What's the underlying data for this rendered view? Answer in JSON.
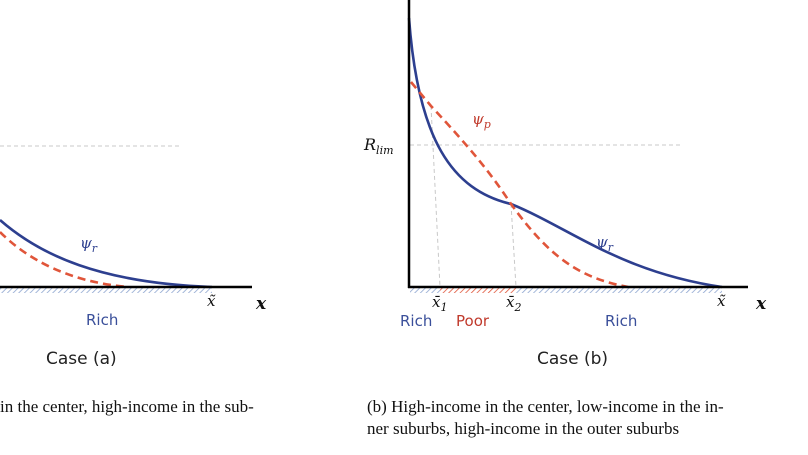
{
  "panel_a": {
    "curve_r_label": "ψ",
    "curve_r_sub": "r",
    "xtilde_label": "x̃",
    "axis_label": "x",
    "region_label": "Rich",
    "case_label": "Case (a)",
    "caption": "in the center, high-income in the sub-"
  },
  "panel_b": {
    "ylim_label": "R",
    "ylim_sub": "lim",
    "curve_p_label": "ψ",
    "curve_p_sub": "p",
    "curve_r_label": "ψ",
    "curve_r_sub": "r",
    "x1_label": "x̄",
    "x1_sub": "1",
    "x2_label": "x̄",
    "x2_sub": "2",
    "xtilde_label": "x̃",
    "axis_label": "x",
    "region_rich_left": "Rich",
    "region_poor": "Poor",
    "region_rich_right": "Rich",
    "case_label": "Case (b)",
    "caption_line1": "(b) High-income in the center, low-income in the in-",
    "caption_line2": "ner suburbs, high-income in the outer suburbs"
  },
  "colors": {
    "rich_curve": "#2d3f8f",
    "poor_curve": "#e0553a",
    "rich_text": "#3a4f9a",
    "poor_text": "#c0392b",
    "axis": "#000000",
    "guide": "#c8c8c8"
  }
}
